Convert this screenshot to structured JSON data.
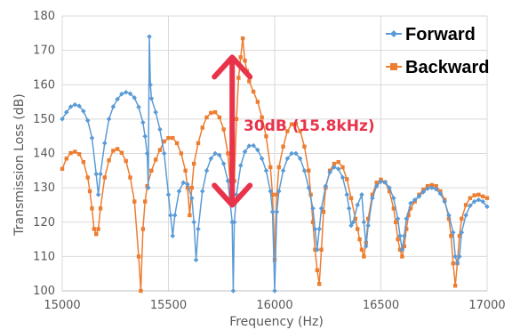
{
  "chart_data": {
    "type": "line",
    "xlabel": "Frequency (Hz)",
    "ylabel": "Transmission Loss (dB)",
    "xlim": [
      15000,
      17000
    ],
    "ylim": [
      100,
      180
    ],
    "x_ticks": [
      "15000",
      "15500",
      "16000",
      "16500",
      "17000"
    ],
    "y_ticks": [
      "100",
      "110",
      "120",
      "130",
      "140",
      "150",
      "160",
      "170",
      "180"
    ],
    "grid": true,
    "legend_position": "top-right",
    "series": [
      {
        "name": "Forward",
        "color": "#5b9bd5",
        "marker": "diamond",
        "points": [
          [
            15000,
            150
          ],
          [
            15020,
            152
          ],
          [
            15040,
            153.6
          ],
          [
            15060,
            154.2
          ],
          [
            15080,
            153.8
          ],
          [
            15100,
            152.3
          ],
          [
            15120,
            149.6
          ],
          [
            15140,
            144.5
          ],
          [
            15160,
            134
          ],
          [
            15170,
            128
          ],
          [
            15180,
            134
          ],
          [
            15200,
            143
          ],
          [
            15220,
            150
          ],
          [
            15240,
            153.6
          ],
          [
            15260,
            155.8
          ],
          [
            15280,
            157.3
          ],
          [
            15300,
            157.8
          ],
          [
            15320,
            157.4
          ],
          [
            15340,
            156.2
          ],
          [
            15360,
            153.5
          ],
          [
            15380,
            149
          ],
          [
            15390,
            145
          ],
          [
            15400,
            140
          ],
          [
            15405,
            130
          ],
          [
            15410,
            174
          ],
          [
            15415,
            160
          ],
          [
            15420,
            156
          ],
          [
            15440,
            152
          ],
          [
            15460,
            147
          ],
          [
            15480,
            140
          ],
          [
            15500,
            128
          ],
          [
            15510,
            122
          ],
          [
            15520,
            116
          ],
          [
            15530,
            122
          ],
          [
            15550,
            129
          ],
          [
            15570,
            131.5
          ],
          [
            15590,
            131
          ],
          [
            15610,
            127
          ],
          [
            15620,
            120
          ],
          [
            15630,
            109
          ],
          [
            15640,
            118
          ],
          [
            15660,
            129
          ],
          [
            15680,
            135
          ],
          [
            15700,
            138.5
          ],
          [
            15720,
            140
          ],
          [
            15740,
            139.5
          ],
          [
            15760,
            137
          ],
          [
            15780,
            132
          ],
          [
            15790,
            126
          ],
          [
            15800,
            120
          ],
          [
            15805,
            100
          ],
          [
            15810,
            120
          ],
          [
            15820,
            128
          ],
          [
            15840,
            136.5
          ],
          [
            15860,
            140.5
          ],
          [
            15880,
            142.2
          ],
          [
            15900,
            142.3
          ],
          [
            15920,
            141
          ],
          [
            15940,
            138.5
          ],
          [
            15960,
            135
          ],
          [
            15980,
            129
          ],
          [
            15990,
            123
          ],
          [
            16000,
            100
          ],
          [
            16010,
            123
          ],
          [
            16020,
            129
          ],
          [
            16040,
            135
          ],
          [
            16060,
            138.5
          ],
          [
            16080,
            140
          ],
          [
            16100,
            140
          ],
          [
            16120,
            138.5
          ],
          [
            16140,
            135
          ],
          [
            16160,
            130
          ],
          [
            16180,
            124
          ],
          [
            16190,
            118
          ],
          [
            16200,
            112
          ],
          [
            16210,
            118
          ],
          [
            16220,
            124
          ],
          [
            16240,
            130.5
          ],
          [
            16260,
            134.5
          ],
          [
            16280,
            136
          ],
          [
            16300,
            135.5
          ],
          [
            16320,
            133
          ],
          [
            16340,
            128
          ],
          [
            16350,
            124
          ],
          [
            16360,
            119
          ],
          [
            16370,
            120
          ],
          [
            16390,
            125
          ],
          [
            16410,
            128
          ],
          [
            16420,
            120
          ],
          [
            16430,
            113
          ],
          [
            16440,
            119
          ],
          [
            16460,
            127
          ],
          [
            16480,
            130.5
          ],
          [
            16500,
            131.8
          ],
          [
            16520,
            131.6
          ],
          [
            16540,
            130
          ],
          [
            16560,
            127
          ],
          [
            16580,
            121
          ],
          [
            16590,
            116
          ],
          [
            16600,
            112
          ],
          [
            16610,
            116
          ],
          [
            16620,
            121
          ],
          [
            16640,
            125.5
          ],
          [
            16660,
            126.5
          ],
          [
            16680,
            127.5
          ],
          [
            16700,
            128.8
          ],
          [
            16720,
            129.8
          ],
          [
            16740,
            130
          ],
          [
            16760,
            129.6
          ],
          [
            16780,
            128.3
          ],
          [
            16800,
            126
          ],
          [
            16820,
            122
          ],
          [
            16840,
            117
          ],
          [
            16850,
            110
          ],
          [
            16860,
            108
          ],
          [
            16870,
            110
          ],
          [
            16880,
            117
          ],
          [
            16900,
            122
          ],
          [
            16920,
            124.8
          ],
          [
            16940,
            126
          ],
          [
            16960,
            126.5
          ],
          [
            16980,
            126
          ],
          [
            17000,
            124.5
          ]
        ]
      },
      {
        "name": "Backward",
        "color": "#ed7d31",
        "marker": "square",
        "points": [
          [
            15000,
            135.5
          ],
          [
            15020,
            138.5
          ],
          [
            15040,
            140.1
          ],
          [
            15060,
            140.5
          ],
          [
            15080,
            139.8
          ],
          [
            15100,
            137.5
          ],
          [
            15120,
            133
          ],
          [
            15130,
            129
          ],
          [
            15140,
            124
          ],
          [
            15150,
            118
          ],
          [
            15160,
            116.5
          ],
          [
            15170,
            118
          ],
          [
            15180,
            124
          ],
          [
            15200,
            133
          ],
          [
            15220,
            138
          ],
          [
            15240,
            140.8
          ],
          [
            15260,
            141.3
          ],
          [
            15280,
            140.2
          ],
          [
            15300,
            137.8
          ],
          [
            15320,
            133
          ],
          [
            15340,
            126
          ],
          [
            15360,
            110
          ],
          [
            15370,
            100
          ],
          [
            15380,
            118
          ],
          [
            15390,
            126
          ],
          [
            15400,
            130.5
          ],
          [
            15420,
            135
          ],
          [
            15440,
            138.2
          ],
          [
            15460,
            141
          ],
          [
            15480,
            143.5
          ],
          [
            15500,
            144.5
          ],
          [
            15520,
            144.5
          ],
          [
            15540,
            143
          ],
          [
            15560,
            140
          ],
          [
            15580,
            135
          ],
          [
            15590,
            130
          ],
          [
            15600,
            122
          ],
          [
            15610,
            130
          ],
          [
            15620,
            137
          ],
          [
            15640,
            143
          ],
          [
            15660,
            147.5
          ],
          [
            15680,
            150.5
          ],
          [
            15700,
            151.8
          ],
          [
            15720,
            152
          ],
          [
            15740,
            150.5
          ],
          [
            15760,
            147
          ],
          [
            15780,
            140
          ],
          [
            15790,
            132
          ],
          [
            15800,
            126
          ],
          [
            15810,
            132
          ],
          [
            15820,
            150
          ],
          [
            15830,
            162
          ],
          [
            15840,
            168
          ],
          [
            15850,
            173.5
          ],
          [
            15860,
            167
          ],
          [
            15870,
            164
          ],
          [
            15880,
            161
          ],
          [
            15900,
            158
          ],
          [
            15920,
            155
          ],
          [
            15940,
            150.5
          ],
          [
            15960,
            145
          ],
          [
            15980,
            136
          ],
          [
            15990,
            128
          ],
          [
            16000,
            109
          ],
          [
            16010,
            128
          ],
          [
            16020,
            136
          ],
          [
            16040,
            142
          ],
          [
            16060,
            146.5
          ],
          [
            16080,
            148.5
          ],
          [
            16100,
            148.6
          ],
          [
            16120,
            146.5
          ],
          [
            16140,
            142
          ],
          [
            16160,
            135
          ],
          [
            16170,
            128
          ],
          [
            16180,
            120
          ],
          [
            16190,
            112
          ],
          [
            16200,
            106
          ],
          [
            16210,
            102
          ],
          [
            16220,
            112
          ],
          [
            16230,
            123
          ],
          [
            16240,
            130
          ],
          [
            16260,
            135
          ],
          [
            16280,
            137
          ],
          [
            16300,
            137.5
          ],
          [
            16320,
            136
          ],
          [
            16340,
            132.5
          ],
          [
            16360,
            127
          ],
          [
            16380,
            121
          ],
          [
            16390,
            118
          ],
          [
            16400,
            115
          ],
          [
            16410,
            112
          ],
          [
            16420,
            110
          ],
          [
            16430,
            114
          ],
          [
            16440,
            121
          ],
          [
            16460,
            128
          ],
          [
            16480,
            131.5
          ],
          [
            16500,
            132.4
          ],
          [
            16520,
            131.6
          ],
          [
            16540,
            129
          ],
          [
            16560,
            124
          ],
          [
            16570,
            120
          ],
          [
            16580,
            115
          ],
          [
            16590,
            112
          ],
          [
            16600,
            110
          ],
          [
            16610,
            113
          ],
          [
            16620,
            118
          ],
          [
            16630,
            122
          ],
          [
            16640,
            124
          ],
          [
            16660,
            126
          ],
          [
            16680,
            128
          ],
          [
            16700,
            129.5
          ],
          [
            16720,
            130.5
          ],
          [
            16740,
            130.8
          ],
          [
            16760,
            130.5
          ],
          [
            16780,
            129
          ],
          [
            16800,
            126.5
          ],
          [
            16820,
            121
          ],
          [
            16830,
            116
          ],
          [
            16840,
            108
          ],
          [
            16850,
            101.5
          ],
          [
            16860,
            108
          ],
          [
            16870,
            116
          ],
          [
            16880,
            121
          ],
          [
            16900,
            125
          ],
          [
            16920,
            127
          ],
          [
            16940,
            127.8
          ],
          [
            16960,
            128
          ],
          [
            16980,
            127.5
          ],
          [
            17000,
            127
          ]
        ]
      }
    ],
    "annotation": {
      "text": "30dB (15.8kHz)",
      "color": "#e8334a",
      "x": 15800,
      "y_from": 168,
      "y_to": 125
    }
  }
}
